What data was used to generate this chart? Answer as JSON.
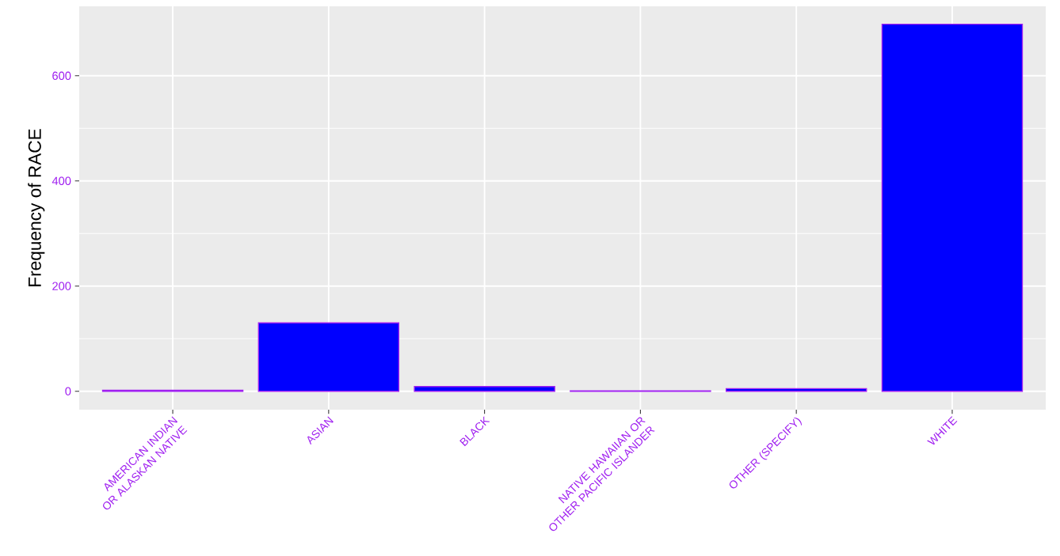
{
  "chart_data": {
    "type": "bar",
    "ylabel": "Frequency of RACE",
    "categories": [
      "AMERICAN INDIAN OR ALASKAN NATIVE",
      "ASIAN",
      "BLACK",
      "NATIVE HAWAIIAN OR OTHER PACIFIC ISLANDER",
      "OTHER (SPECIFY)",
      "WHITE"
    ],
    "values": [
      2,
      130,
      9,
      1,
      5,
      698
    ],
    "color": "#0000ff",
    "ylim": [
      -35,
      732
    ],
    "yticks": [
      0,
      200,
      400,
      600
    ],
    "grid": true
  }
}
